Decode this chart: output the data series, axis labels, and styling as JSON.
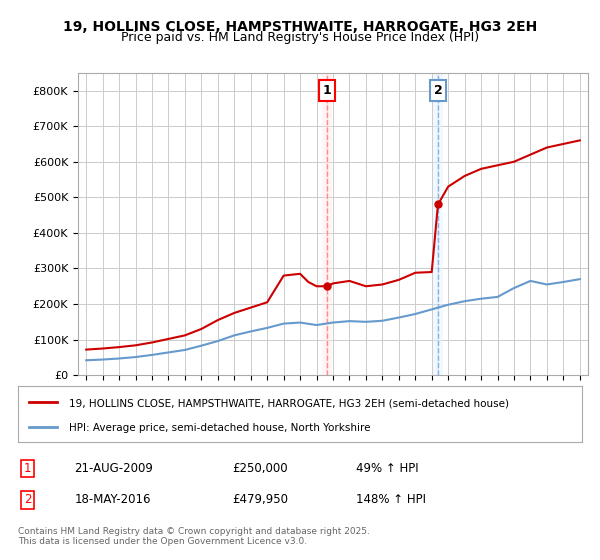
{
  "title_line1": "19, HOLLINS CLOSE, HAMPSTHWAITE, HARROGATE, HG3 2EH",
  "title_line2": "Price paid vs. HM Land Registry's House Price Index (HPI)",
  "ylabel": "",
  "background_color": "#ffffff",
  "plot_bg_color": "#ffffff",
  "grid_color": "#cccccc",
  "red_line_color": "#cc0000",
  "blue_line_color": "#6699cc",
  "marker1_date_x": 2009.65,
  "marker2_date_x": 2016.38,
  "annotation1_label": "1",
  "annotation2_label": "2",
  "legend_line1": "19, HOLLINS CLOSE, HAMPSTHWAITE, HARROGATE, HG3 2EH (semi-detached house)",
  "legend_line2": "HPI: Average price, semi-detached house, North Yorkshire",
  "table_row1": [
    "1",
    "21-AUG-2009",
    "£250,000",
    "49% ↑ HPI"
  ],
  "table_row2": [
    "2",
    "18-MAY-2016",
    "£479,950",
    "148% ↑ HPI"
  ],
  "footer_text": "Contains HM Land Registry data © Crown copyright and database right 2025.\nThis data is licensed under the Open Government Licence v3.0.",
  "ylim_max": 850000,
  "ylim_min": 0,
  "xlim_min": 1994.5,
  "xlim_max": 2025.5,
  "hpi_years": [
    1995,
    1996,
    1997,
    1998,
    1999,
    2000,
    2001,
    2002,
    2003,
    2004,
    2005,
    2006,
    2007,
    2008,
    2009,
    2010,
    2011,
    2012,
    2013,
    2014,
    2015,
    2016,
    2017,
    2018,
    2019,
    2020,
    2021,
    2022,
    2023,
    2024,
    2025
  ],
  "hpi_values": [
    42000,
    44000,
    47000,
    51000,
    57000,
    64000,
    71000,
    83000,
    96000,
    112000,
    123000,
    133000,
    145000,
    148000,
    141000,
    148000,
    152000,
    150000,
    153000,
    162000,
    172000,
    185000,
    198000,
    208000,
    215000,
    220000,
    245000,
    265000,
    255000,
    262000,
    270000
  ],
  "property_years": [
    1995,
    1996,
    1997,
    1998,
    1999,
    2000,
    2001,
    2002,
    2003,
    2004,
    2005,
    2006,
    2007,
    2008,
    2008.5,
    2009,
    2009.65,
    2010,
    2011,
    2012,
    2013,
    2014,
    2015,
    2016.0,
    2016.38,
    2017,
    2018,
    2019,
    2020,
    2021,
    2022,
    2023,
    2024,
    2025
  ],
  "property_values": [
    72000,
    75000,
    79000,
    84000,
    92000,
    102000,
    112000,
    130000,
    155000,
    175000,
    190000,
    205000,
    280000,
    285000,
    262000,
    250000,
    250000,
    258000,
    265000,
    250000,
    255000,
    268000,
    288000,
    290000,
    479950,
    530000,
    560000,
    580000,
    590000,
    600000,
    620000,
    640000,
    650000,
    660000
  ],
  "xtick_years": [
    1995,
    1996,
    1997,
    1998,
    1999,
    2000,
    2001,
    2002,
    2003,
    2004,
    2005,
    2006,
    2007,
    2008,
    2009,
    2010,
    2011,
    2012,
    2013,
    2014,
    2015,
    2016,
    2017,
    2018,
    2019,
    2020,
    2021,
    2022,
    2023,
    2024,
    2025
  ]
}
